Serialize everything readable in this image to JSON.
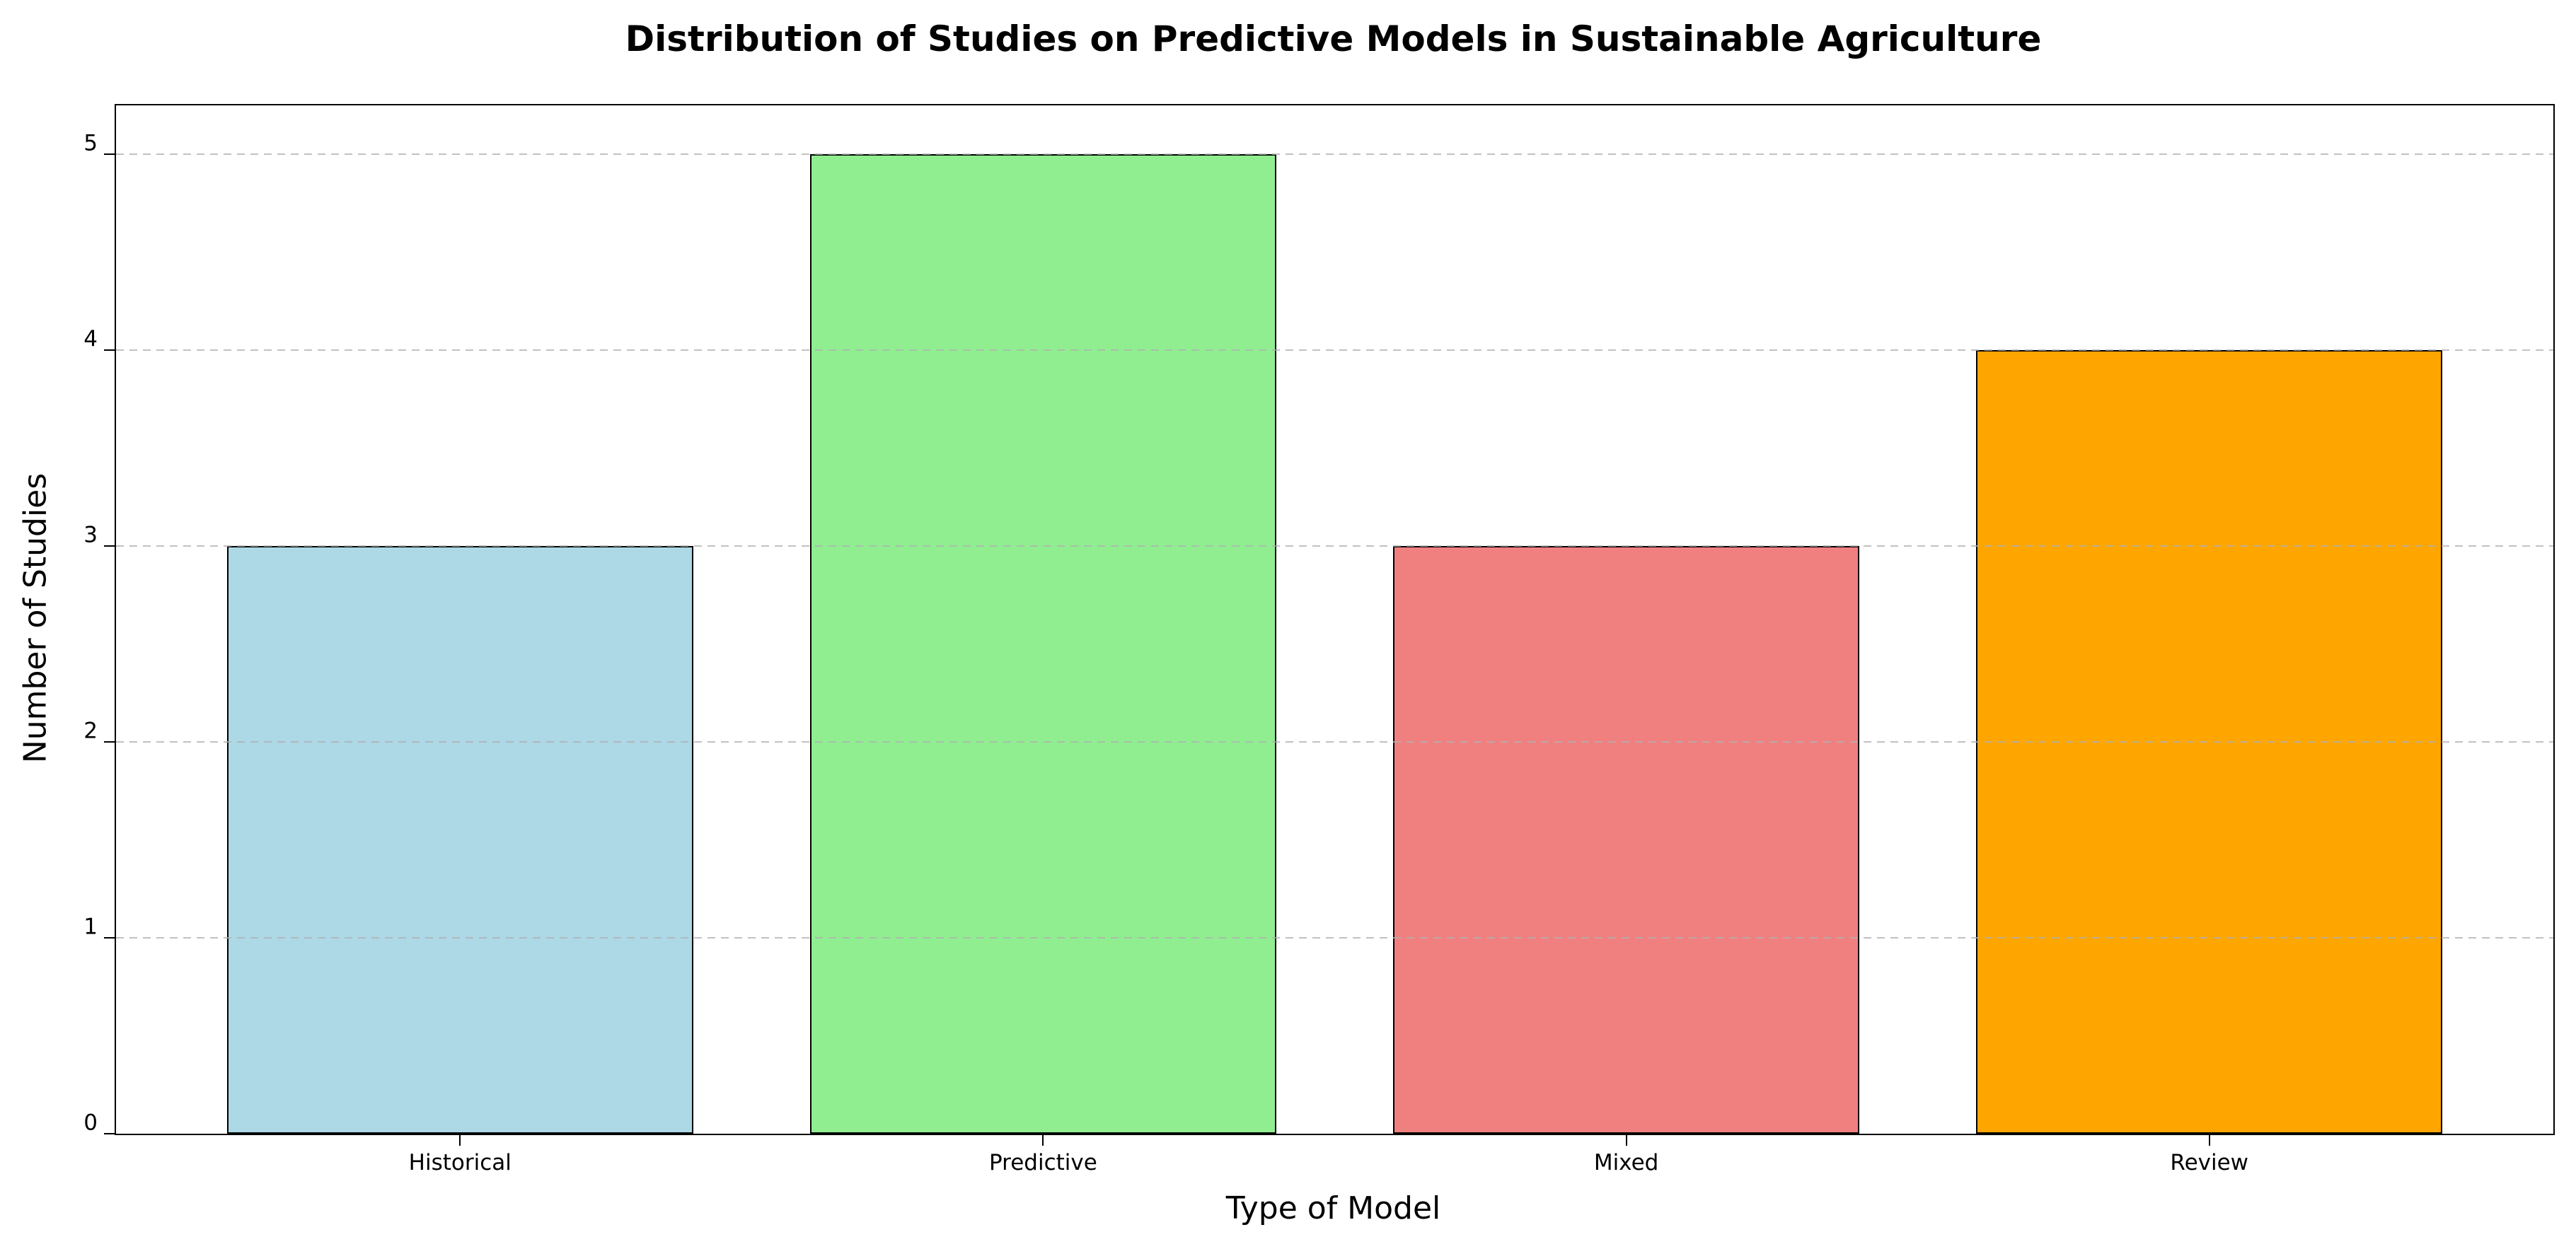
{
  "figure": {
    "title": "Distribution of Studies on Predictive Models in Sustainable Agriculture",
    "xlabel": "Type of Model",
    "ylabel": "Number of Studies",
    "background_color": "#ffffff"
  },
  "chart_data": {
    "type": "bar",
    "title": "Distribution of Studies on Predictive Models in Sustainable Agriculture",
    "xlabel": "Type of Model",
    "ylabel": "Number of Studies",
    "categories": [
      "Historical",
      "Predictive",
      "Mixed",
      "Review"
    ],
    "values": [
      3,
      5,
      3,
      4
    ],
    "bar_colors": [
      "#add8e6",
      "#90ee90",
      "#f08080",
      "#ffa500"
    ],
    "bar_edge_color": "#000000",
    "yticks": [
      0,
      1,
      2,
      3,
      4,
      5
    ],
    "ytick_labels": [
      "0",
      "1",
      "2",
      "3",
      "4",
      "5"
    ],
    "ylim": [
      0,
      5.25
    ],
    "xlim": [
      -0.59,
      3.59
    ],
    "bar_width": 0.8,
    "grid": "horizontal-dashed",
    "grid_color": "#b0b0b0",
    "axis_color": "#000000",
    "legend_position": "none"
  }
}
